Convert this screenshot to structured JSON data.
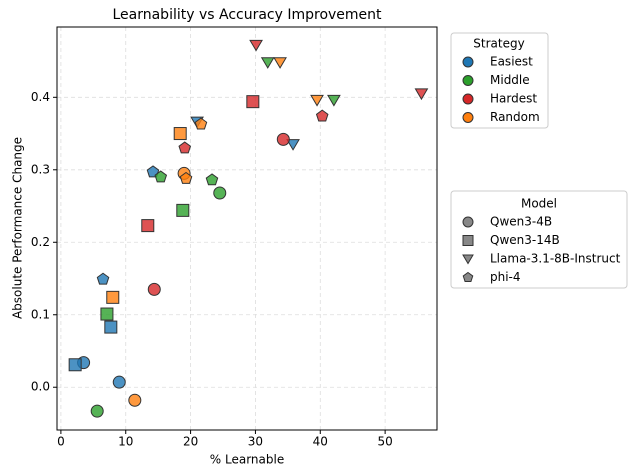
{
  "chart_data": {
    "type": "scatter",
    "title": "Learnability vs Accuracy Improvement",
    "x_label": "% Learnable",
    "y_label": "Absolute Performance Change",
    "xlim": [
      -0.6,
      58
    ],
    "ylim": [
      -0.059,
      0.497
    ],
    "xticks": [
      0,
      10,
      20,
      30,
      40,
      50
    ],
    "yticks": [
      {
        "value": 0,
        "label": "0.0"
      },
      0.1,
      0.2,
      0.3,
      0.4
    ],
    "grid": true,
    "color_legend_title": "Strategy",
    "marker_legend_title": "Model",
    "models": [
      {
        "name": "Qwen3-4B",
        "marker": "circle"
      },
      {
        "name": "Qwen3-14B",
        "marker": "square"
      },
      {
        "name": "Llama-3.1-8B-Instruct",
        "marker": "triangle"
      },
      {
        "name": "phi-4",
        "marker": "pentagon"
      }
    ],
    "series": [
      {
        "name": "Easiest",
        "color": "#1f77b4",
        "x": [
          3.5,
          9.0,
          2.2,
          7.7,
          21.0,
          35.8,
          6.5,
          14.2
        ],
        "values": [
          0.034,
          0.007,
          0.031,
          0.083,
          0.366,
          0.335,
          0.149,
          0.297
        ],
        "markers": [
          "circle",
          "circle",
          "square",
          "square",
          "triangle",
          "triangle",
          "pentagon",
          "pentagon"
        ]
      },
      {
        "name": "Middle",
        "color": "#2ca02c",
        "x": [
          5.6,
          24.5,
          7.1,
          18.8,
          31.9,
          42.1,
          15.4,
          23.3
        ],
        "values": [
          -0.033,
          0.268,
          0.101,
          0.244,
          0.448,
          0.396,
          0.29,
          0.286
        ],
        "markers": [
          "circle",
          "circle",
          "square",
          "square",
          "triangle",
          "triangle",
          "pentagon",
          "pentagon"
        ]
      },
      {
        "name": "Hardest",
        "color": "#d62728",
        "x": [
          14.4,
          34.3,
          13.4,
          29.6,
          30.1,
          55.6,
          19.1,
          40.3
        ],
        "values": [
          0.135,
          0.342,
          0.223,
          0.394,
          0.472,
          0.405,
          0.33,
          0.374
        ],
        "markers": [
          "circle",
          "circle",
          "square",
          "square",
          "triangle",
          "triangle",
          "pentagon",
          "pentagon"
        ]
      },
      {
        "name": "Random",
        "color": "#ff7f0e",
        "x": [
          11.4,
          19.0,
          8.0,
          18.4,
          33.8,
          39.5,
          21.6,
          19.3
        ],
        "values": [
          -0.018,
          0.295,
          0.124,
          0.35,
          0.448,
          0.396,
          0.363,
          0.288
        ],
        "markers": [
          "circle",
          "circle",
          "square",
          "square",
          "triangle",
          "triangle",
          "pentagon",
          "pentagon"
        ]
      }
    ]
  }
}
